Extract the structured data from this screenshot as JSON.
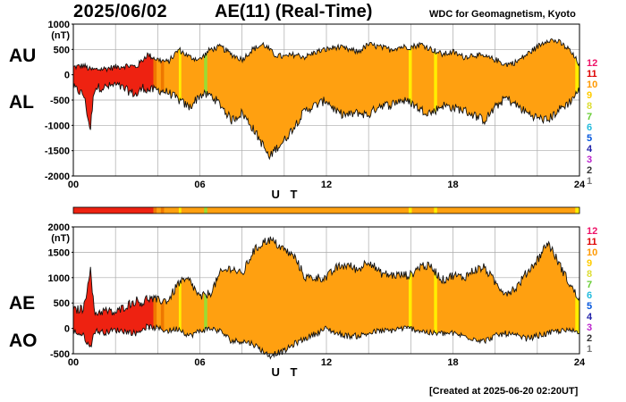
{
  "header": {
    "date": "2025/06/02",
    "title": "AE(11) (Real-Time)",
    "source": "WDC for Geomagnetism, Kyoto",
    "created": "[Created at 2025-06-20 02:20UT]"
  },
  "colors": {
    "scale_colors": [
      "#ee1166",
      "#dd0000",
      "#ff9900",
      "#ffcc00",
      "#dddd33",
      "#66cc33",
      "#22bbdd",
      "#0055dd",
      "#2222aa",
      "#bb22cc",
      "#333333",
      "#777777",
      "#bbbbbb"
    ],
    "bands": {
      "red": "#ee2211",
      "orange": "#ffa010",
      "yellow": "#ffee00",
      "green": "#99dd33",
      "darkorange": "#ee7700"
    }
  },
  "station_scale": [
    "12",
    "11",
    "10",
    "9",
    "8",
    "7",
    "6",
    "5",
    "4",
    "3",
    "2",
    "1"
  ],
  "chart_data": [
    {
      "type": "area",
      "series": [
        {
          "name": "AU"
        },
        {
          "name": "AL"
        }
      ],
      "side_labels": [
        "AU",
        "AL"
      ],
      "unit_label": "(nT)",
      "xlabel": "U T",
      "xlim": [
        0,
        24
      ],
      "xticks": [
        "00",
        "06",
        "12",
        "18",
        "24"
      ],
      "ylim": [
        -2000,
        1000
      ],
      "yticks": [
        "1000",
        "500",
        "0",
        "-500",
        "-1000",
        "-1500",
        "-2000"
      ],
      "grid": true,
      "envelope_hours": [
        0,
        0.5,
        0.8,
        1,
        1.5,
        2,
        2.5,
        3,
        3.3,
        3.5,
        4,
        4.5,
        5,
        5.5,
        6,
        6.5,
        7,
        7.5,
        8,
        8.5,
        9,
        9.3,
        9.5,
        10,
        10.5,
        11,
        11.5,
        12,
        12.5,
        13,
        13.5,
        14,
        14.5,
        15,
        15.5,
        16,
        16.5,
        17,
        17.5,
        18,
        18.5,
        19,
        19.5,
        20,
        20.5,
        21,
        21.5,
        22,
        22.5,
        23,
        23.5,
        24
      ],
      "AU": [
        150,
        180,
        100,
        100,
        120,
        150,
        180,
        160,
        300,
        400,
        300,
        250,
        500,
        350,
        300,
        500,
        550,
        400,
        300,
        500,
        600,
        500,
        400,
        350,
        400,
        350,
        450,
        500,
        550,
        500,
        450,
        600,
        550,
        500,
        550,
        550,
        600,
        500,
        400,
        450,
        350,
        400,
        350,
        300,
        200,
        250,
        400,
        550,
        700,
        650,
        500,
        200
      ],
      "AL": [
        -250,
        -400,
        -1100,
        -250,
        -250,
        -200,
        -300,
        -400,
        -250,
        -300,
        -300,
        -350,
        -500,
        -650,
        -400,
        -400,
        -600,
        -900,
        -750,
        -1050,
        -1400,
        -1650,
        -1500,
        -1300,
        -1000,
        -700,
        -600,
        -500,
        -750,
        -800,
        -750,
        -800,
        -600,
        -600,
        -500,
        -550,
        -700,
        -750,
        -600,
        -650,
        -700,
        -800,
        -900,
        -650,
        -450,
        -600,
        -750,
        -850,
        -900,
        -700,
        -550,
        -300
      ],
      "bands": [
        {
          "from": 0,
          "to": 3.8,
          "color": "red"
        },
        {
          "from": 3.8,
          "to": 3.95,
          "color": "darkorange"
        },
        {
          "from": 4.15,
          "to": 4.3,
          "color": "darkorange"
        },
        {
          "from": 5.0,
          "to": 5.12,
          "color": "yellow"
        },
        {
          "from": 6.2,
          "to": 6.35,
          "color": "green"
        },
        {
          "from": 15.9,
          "to": 16.05,
          "color": "yellow"
        },
        {
          "from": 17.1,
          "to": 17.25,
          "color": "yellow"
        },
        {
          "from": 23.8,
          "to": 24,
          "color": "yellow"
        }
      ]
    },
    {
      "type": "area",
      "series": [
        {
          "name": "AE"
        },
        {
          "name": "AO"
        }
      ],
      "side_labels": [
        "AE",
        "AO"
      ],
      "unit_label": "(nT)",
      "xlabel": "U T",
      "xlim": [
        0,
        24
      ],
      "xticks": [
        "00",
        "06",
        "12",
        "18",
        "24"
      ],
      "ylim": [
        -500,
        2000
      ],
      "yticks": [
        "2000",
        "1500",
        "1000",
        "500",
        "0",
        "-500"
      ],
      "grid": true,
      "envelope_hours": [
        0,
        0.5,
        0.8,
        1,
        1.5,
        2,
        2.5,
        3,
        3.3,
        3.5,
        4,
        4.5,
        5,
        5.5,
        6,
        6.5,
        7,
        7.5,
        8,
        8.5,
        9,
        9.3,
        9.5,
        10,
        10.5,
        11,
        11.5,
        12,
        12.5,
        13,
        13.5,
        14,
        14.5,
        15,
        15.5,
        16,
        16.5,
        17,
        17.5,
        18,
        18.5,
        19,
        19.5,
        20,
        20.5,
        21,
        21.5,
        22,
        22.5,
        23,
        23.5,
        24
      ],
      "AE": [
        350,
        400,
        1200,
        300,
        350,
        300,
        450,
        550,
        500,
        600,
        550,
        550,
        900,
        950,
        600,
        700,
        1100,
        1200,
        1050,
        1500,
        1700,
        1750,
        1700,
        1550,
        1400,
        1000,
        1000,
        1000,
        1200,
        1250,
        1150,
        1350,
        1100,
        1050,
        1050,
        1050,
        1250,
        1200,
        950,
        1050,
        1000,
        1150,
        1200,
        900,
        700,
        800,
        1100,
        1350,
        1700,
        1300,
        900,
        550
      ],
      "AO": [
        -50,
        -150,
        -400,
        -50,
        -80,
        -30,
        -60,
        -100,
        0,
        30,
        0,
        -50,
        0,
        -150,
        -50,
        0,
        -60,
        -250,
        -250,
        -300,
        -450,
        -550,
        -500,
        -450,
        -300,
        -200,
        -100,
        0,
        -100,
        -150,
        -150,
        -100,
        -50,
        -50,
        0,
        0,
        -50,
        -100,
        -100,
        -100,
        -150,
        -200,
        -250,
        -150,
        -100,
        -150,
        -200,
        -150,
        -100,
        -50,
        -50,
        -50
      ],
      "bands": [
        {
          "from": 0,
          "to": 3.8,
          "color": "red"
        },
        {
          "from": 3.8,
          "to": 3.95,
          "color": "darkorange"
        },
        {
          "from": 4.15,
          "to": 4.3,
          "color": "darkorange"
        },
        {
          "from": 5.0,
          "to": 5.12,
          "color": "yellow"
        },
        {
          "from": 6.2,
          "to": 6.35,
          "color": "green"
        },
        {
          "from": 15.9,
          "to": 16.05,
          "color": "yellow"
        },
        {
          "from": 17.1,
          "to": 17.25,
          "color": "yellow"
        },
        {
          "from": 23.8,
          "to": 24,
          "color": "yellow"
        }
      ]
    }
  ]
}
